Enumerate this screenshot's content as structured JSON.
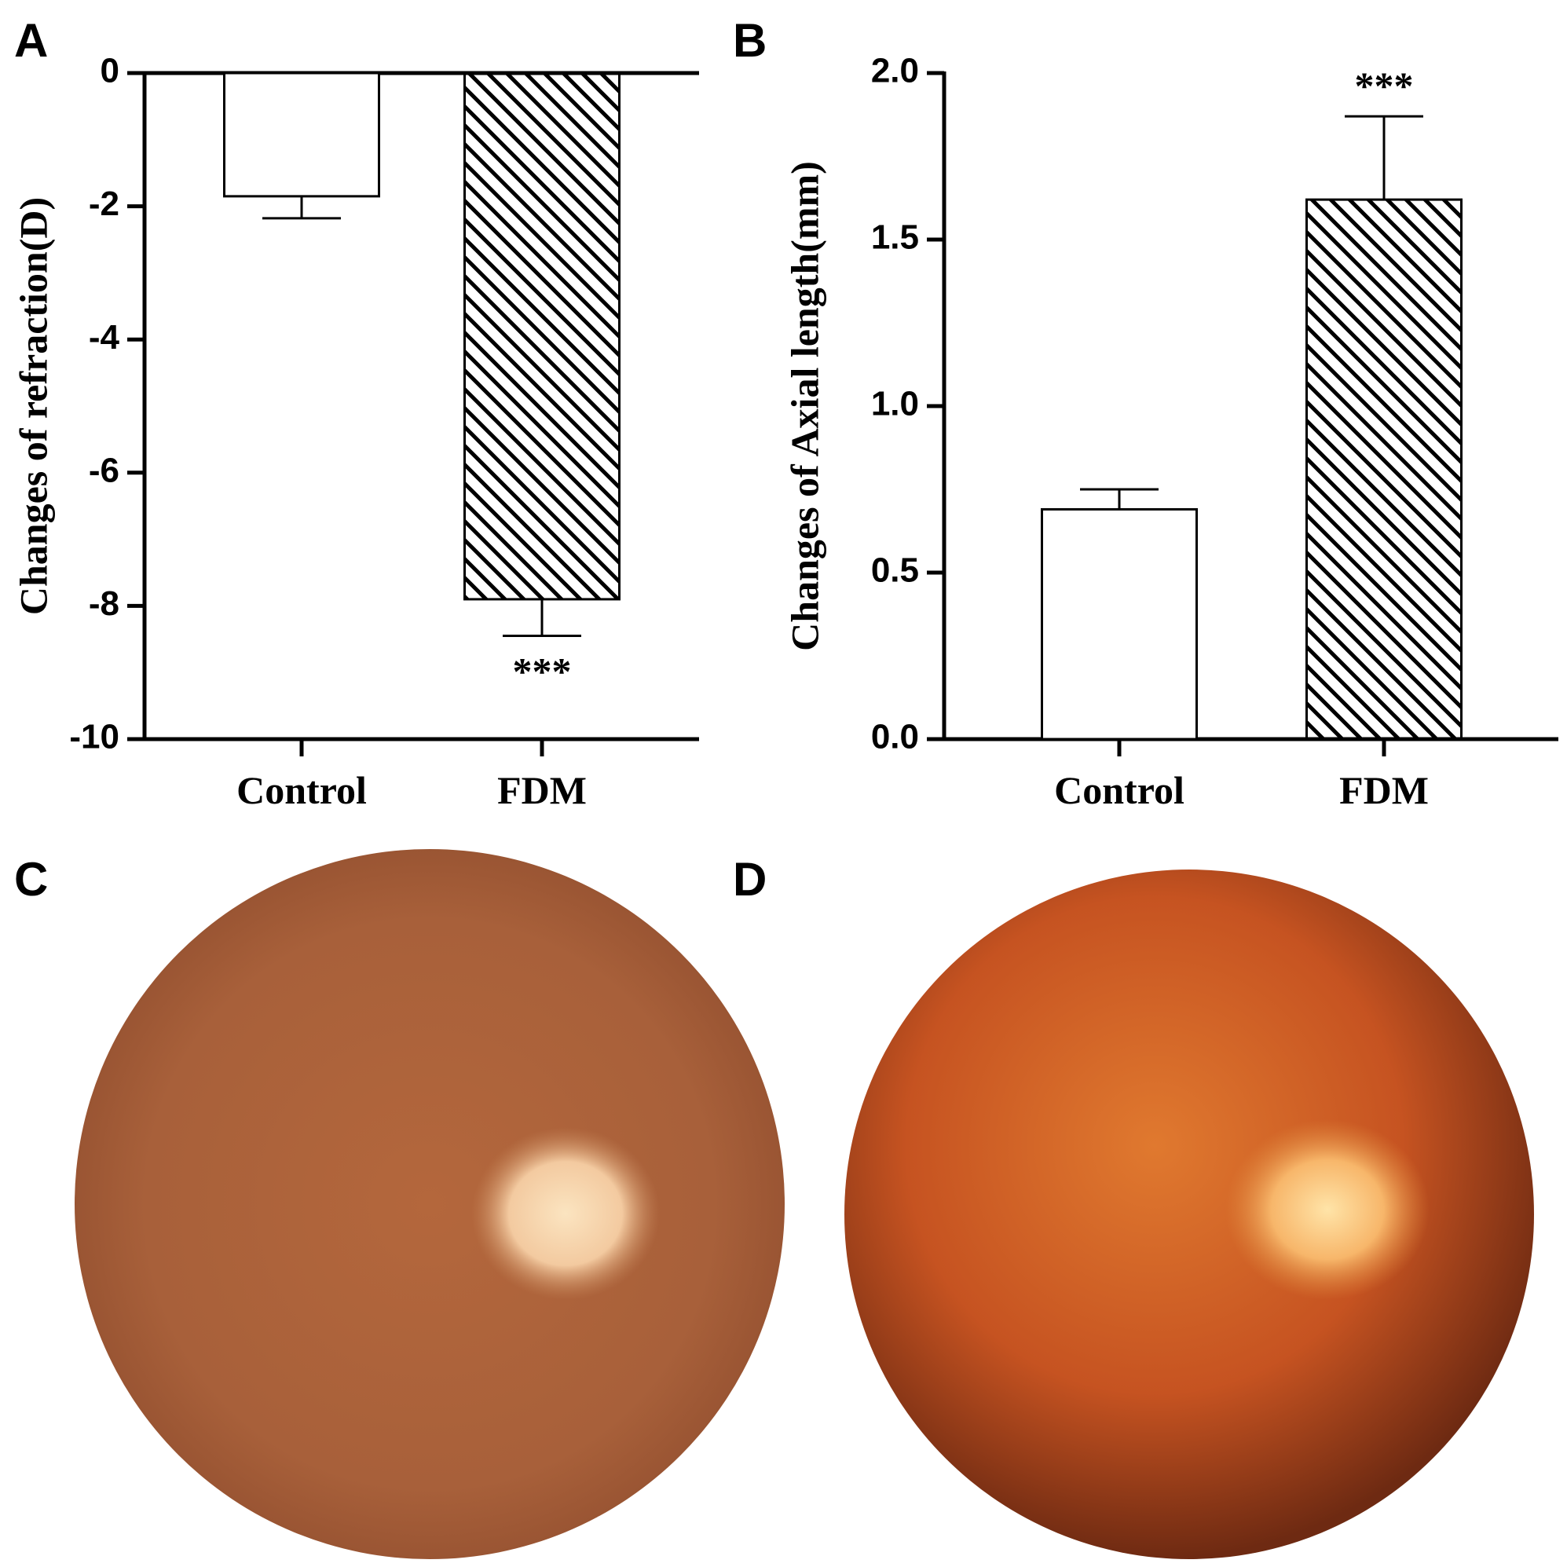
{
  "chart_data": [
    {
      "type": "bar",
      "panel_label": "A",
      "y_label": "Changes of refraction(D)",
      "categories": [
        "Control",
        "FDM"
      ],
      "values": [
        -1.85,
        -7.9
      ],
      "errors": [
        0.33,
        0.55
      ],
      "hatched": [
        false,
        true
      ],
      "color": "#000000",
      "annotations": [
        {
          "text": "***",
          "category": "FDM"
        }
      ],
      "ylim": [
        -10,
        0
      ],
      "yticks": [
        0,
        -2,
        -4,
        -6,
        -8,
        -10
      ]
    },
    {
      "type": "bar",
      "panel_label": "B",
      "y_label": "Changes of Axial length(mm)",
      "categories": [
        "Control",
        "FDM"
      ],
      "values": [
        0.69,
        1.62
      ],
      "errors": [
        0.06,
        0.25
      ],
      "hatched": [
        false,
        true
      ],
      "color": "#000000",
      "annotations": [
        {
          "text": "***",
          "category": "FDM"
        }
      ],
      "ylim": [
        0,
        2
      ],
      "yticks": [
        {
          "value": 0,
          "label": "0.0"
        },
        0.5,
        {
          "value": 1,
          "label": "1.0"
        },
        1.5,
        {
          "value": 2,
          "label": "2.0"
        }
      ]
    }
  ],
  "images": [
    {
      "panel_label": "C"
    },
    {
      "panel_label": "D"
    }
  ]
}
